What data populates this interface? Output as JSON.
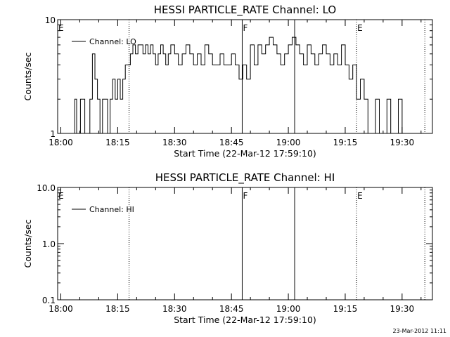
{
  "footer": {
    "timestamp": "23-Mar-2012 11:11"
  },
  "chart_data": [
    {
      "type": "line",
      "title": "HESSI PARTICLE_RATE Channel: LO",
      "xlabel": "Start Time (22-Mar-12 17:59:10)",
      "ylabel": "Counts/sec",
      "yscale": "log",
      "ylim": [
        1,
        10
      ],
      "xlim": [
        "17:59:10",
        "19:38:00"
      ],
      "x_ticks": [
        "18:00",
        "18:15",
        "18:30",
        "18:45",
        "19:00",
        "19:15",
        "19:30"
      ],
      "y_ticks": [
        "1",
        "10"
      ],
      "legend": {
        "position": "top-left",
        "entries": [
          "Channel: LO"
        ]
      },
      "markers": [
        {
          "time": "18:18:00",
          "label": "",
          "style": "dotted"
        },
        {
          "time": "18:47:50",
          "label": "F",
          "style": "solid"
        },
        {
          "time": "19:01:40",
          "label": "",
          "style": "solid"
        },
        {
          "time": "19:18:00",
          "label": "E",
          "style": "dotted"
        },
        {
          "time": "19:36:00",
          "label": "",
          "style": "dotted"
        }
      ],
      "corner_label": "E",
      "series": [
        {
          "name": "Channel: LO",
          "x": [
            "18:03:10",
            "18:03:40",
            "18:04:10",
            "18:04:40",
            "18:05:10",
            "18:05:40",
            "18:06:20",
            "18:07:00",
            "18:07:40",
            "18:08:20",
            "18:09:00",
            "18:09:40",
            "18:10:20",
            "18:11:00",
            "18:11:40",
            "18:12:20",
            "18:13:00",
            "18:13:40",
            "18:14:20",
            "18:15:00",
            "18:15:40",
            "18:16:20",
            "18:17:00",
            "18:17:40",
            "18:18:20",
            "18:19:00",
            "18:19:40",
            "18:20:20",
            "18:21:00",
            "18:21:40",
            "18:22:20",
            "18:23:00",
            "18:23:40",
            "18:24:20",
            "18:25:00",
            "18:25:40",
            "18:26:20",
            "18:27:00",
            "18:27:40",
            "18:28:20",
            "18:29:00",
            "18:30:00",
            "18:31:00",
            "18:32:00",
            "18:33:00",
            "18:34:00",
            "18:35:00",
            "18:36:00",
            "18:37:00",
            "18:38:00",
            "18:39:00",
            "18:40:00",
            "18:41:00",
            "18:42:00",
            "18:43:00",
            "18:44:00",
            "18:45:00",
            "18:46:00",
            "18:47:00",
            "18:48:00",
            "18:49:00",
            "18:50:00",
            "18:51:00",
            "18:52:00",
            "18:53:00",
            "18:54:00",
            "18:55:00",
            "18:56:00",
            "18:57:00",
            "18:58:00",
            "18:59:00",
            "19:00:00",
            "19:01:00",
            "19:02:00",
            "19:03:00",
            "19:04:00",
            "19:05:00",
            "19:06:00",
            "19:07:00",
            "19:08:00",
            "19:09:00",
            "19:10:00",
            "19:11:00",
            "19:12:00",
            "19:13:00",
            "19:14:00",
            "19:15:00",
            "19:16:00",
            "19:17:00",
            "19:18:00",
            "19:19:00",
            "19:20:00",
            "19:21:00",
            "19:22:00",
            "19:23:00",
            "19:24:00",
            "19:25:00",
            "19:26:00",
            "19:27:00",
            "19:28:00",
            "19:29:00",
            "19:30:00",
            "19:31:00"
          ],
          "y": [
            1,
            2,
            1,
            1,
            2,
            2,
            1,
            1,
            2,
            5,
            3,
            2,
            1,
            2,
            2,
            1,
            2,
            3,
            2,
            3,
            2,
            3,
            4,
            4,
            5,
            6,
            5,
            6,
            6,
            5,
            6,
            5,
            6,
            5,
            4,
            5,
            6,
            5,
            4,
            5,
            6,
            5,
            4,
            5,
            6,
            5,
            4,
            5,
            4,
            6,
            5,
            4,
            4,
            5,
            4,
            4,
            5,
            4,
            3,
            4,
            3,
            6,
            4,
            6,
            5,
            6,
            7,
            6,
            5,
            4,
            5,
            6,
            7,
            6,
            5,
            4,
            6,
            5,
            4,
            5,
            6,
            5,
            4,
            5,
            4,
            6,
            4,
            3,
            4,
            2,
            3,
            2,
            1,
            1,
            2,
            1,
            1,
            2,
            1,
            1,
            2,
            1,
            1
          ]
        }
      ]
    },
    {
      "type": "line",
      "title": "HESSI PARTICLE_RATE Channel: HI",
      "xlabel": "Start Time (22-Mar-12 17:59:10)",
      "ylabel": "Counts/sec",
      "yscale": "log",
      "ylim": [
        0.1,
        10
      ],
      "xlim": [
        "17:59:10",
        "19:38:00"
      ],
      "x_ticks": [
        "18:00",
        "18:15",
        "18:30",
        "18:45",
        "19:00",
        "19:15",
        "19:30"
      ],
      "y_ticks": [
        "10.0",
        "1.0",
        "0.1"
      ],
      "legend": {
        "position": "top-left",
        "entries": [
          "Channel: HI"
        ]
      },
      "markers": [
        {
          "time": "18:18:00",
          "label": "",
          "style": "dotted"
        },
        {
          "time": "18:47:50",
          "label": "F",
          "style": "solid"
        },
        {
          "time": "19:01:40",
          "label": "",
          "style": "solid"
        },
        {
          "time": "19:18:00",
          "label": "E",
          "style": "dotted"
        },
        {
          "time": "19:36:00",
          "label": "",
          "style": "dotted"
        }
      ],
      "corner_label": "E",
      "series": [
        {
          "name": "Channel: HI",
          "x": [],
          "y": []
        }
      ]
    }
  ]
}
